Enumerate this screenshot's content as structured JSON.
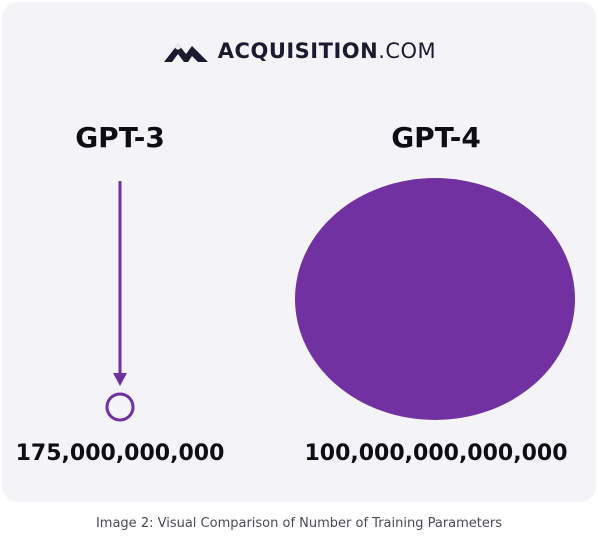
{
  "brand": {
    "name": "ACQUISITION",
    "tld": ".COM",
    "color": "#1b1b2f",
    "logo_icon": "mountain-logo-icon"
  },
  "models": [
    {
      "label": "GPT-3",
      "parameters": "175,000,000,000",
      "parameters_value": 175000000000
    },
    {
      "label": "GPT-4",
      "parameters": "100,000,000,000,000",
      "parameters_value": 100000000000000
    }
  ],
  "caption": "Image 2: Visual Comparison of Number of Training Parameters",
  "colors": {
    "accent": "#7231a0",
    "background": "#f4f4f8",
    "text": "#0d0d14"
  }
}
